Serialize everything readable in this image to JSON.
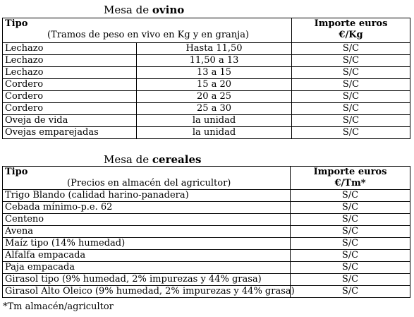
{
  "ovino": {
    "title_prefix": "Mesa de ",
    "title_bold": "ovino",
    "col1_header": "Tipo",
    "col1_sub": "(Tramos de peso en vivo en Kg y en granja)",
    "col2_header_line1": "Importe euros",
    "col2_header_line2": "€/Kg",
    "rows": [
      {
        "tipo": "Lechazo",
        "tramo": "Hasta 11,50",
        "importe": "S/C"
      },
      {
        "tipo": "Lechazo",
        "tramo": "11,50 a 13",
        "importe": "S/C"
      },
      {
        "tipo": "Lechazo",
        "tramo": "13 a 15",
        "importe": "S/C"
      },
      {
        "tipo": "Cordero",
        "tramo": "15 a 20",
        "importe": "S/C"
      },
      {
        "tipo": "Cordero",
        "tramo": "20 a 25",
        "importe": "S/C"
      },
      {
        "tipo": "Cordero",
        "tramo": "25 a 30",
        "importe": "S/C"
      },
      {
        "tipo": "Oveja de vida",
        "tramo": "la unidad",
        "importe": "S/C"
      },
      {
        "tipo": "Ovejas emparejadas",
        "tramo": "la unidad",
        "importe": "S/C"
      }
    ]
  },
  "cereales": {
    "title_prefix": "Mesa de ",
    "title_bold": "cereales",
    "col1_header": "Tipo",
    "col1_sub": "(Precios en almacén del agricultor)",
    "col2_header_line1": "Importe euros",
    "col2_header_line2": "€/Tm*",
    "rows": [
      {
        "tipo": "Trigo Blando (calidad harino-panadera)",
        "importe": "S/C"
      },
      {
        "tipo": "Cebada mínimo-p.e. 62",
        "importe": "S/C"
      },
      {
        "tipo": "Centeno",
        "importe": "S/C"
      },
      {
        "tipo": "Avena",
        "importe": "S/C"
      },
      {
        "tipo": "Maíz tipo (14% humedad)",
        "importe": "S/C"
      },
      {
        "tipo": "Alfalfa empacada",
        "importe": "S/C"
      },
      {
        "tipo": "Paja empacada",
        "importe": "S/C"
      },
      {
        "tipo": "Girasol tipo (9% humedad, 2% impurezas y 44% grasa)",
        "importe": "S/C"
      },
      {
        "tipo": "Girasol Alto Oleico (9% humedad, 2% impurezas y 44% grasa)",
        "importe": "S/C"
      }
    ],
    "footnote": "*Tm almacén/agricultor"
  }
}
